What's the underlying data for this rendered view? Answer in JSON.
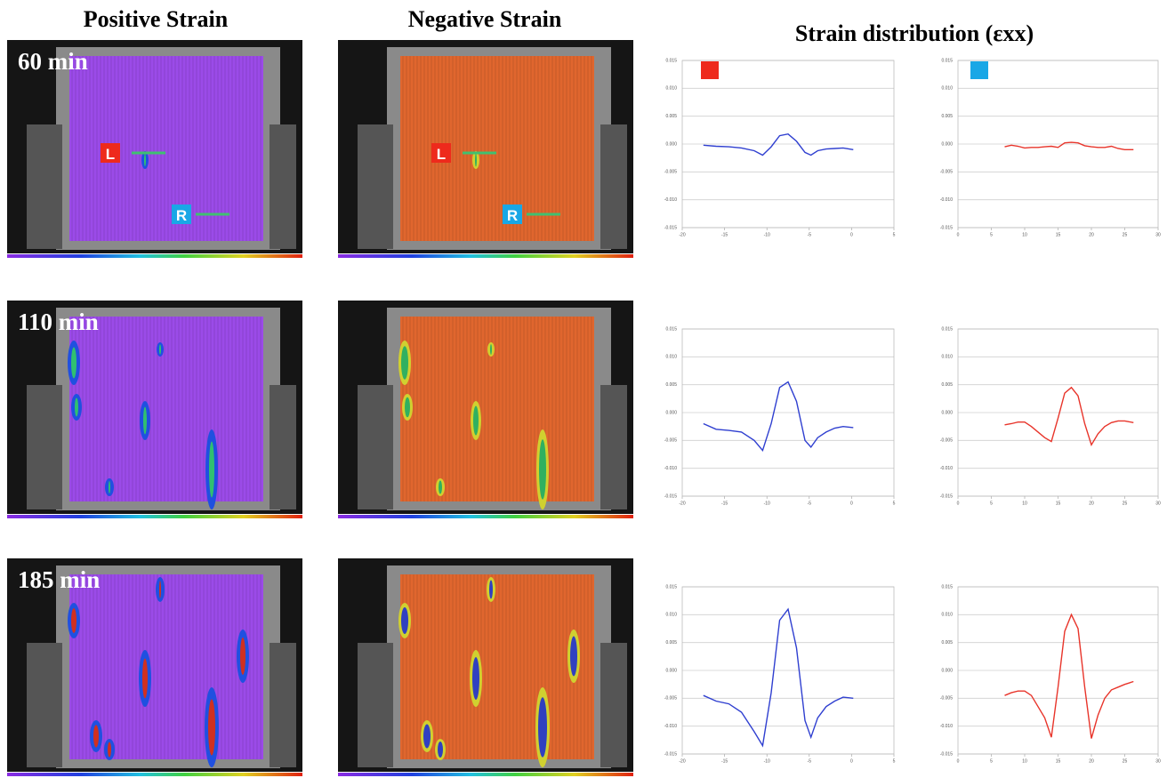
{
  "headers": [
    "Positive Strain",
    "Negative Strain",
    "Strain distribution (εxx)"
  ],
  "times": [
    "60 min",
    "110 min",
    "185 min"
  ],
  "markers": [
    "L",
    "R"
  ],
  "chart_data": [
    {
      "type": "line",
      "xlim": [
        -20,
        5
      ],
      "xticks": [
        -20,
        -15,
        -10,
        -5,
        0,
        5
      ],
      "ylim": [
        -0.015,
        0.015
      ],
      "yticks": [
        -0.015,
        {
          "value": -0.01,
          "label": "-0.010"
        },
        -0.005,
        {
          "value": 0,
          "label": "0.000"
        },
        0.005,
        {
          "value": 0.01,
          "label": "0.010"
        },
        0.015
      ],
      "x": [
        -17.5,
        -16,
        -14.5,
        -13,
        -11.5,
        -10.5,
        -9.5,
        -8.5,
        -7.5,
        -6.5,
        -5.5,
        -4.8,
        -4,
        -3,
        -2,
        -1,
        0.2
      ],
      "series": [
        {
          "color": "#2f3fd0",
          "values": [
            -0.0002,
            -0.0004,
            -0.0005,
            -0.0007,
            -0.0012,
            -0.002,
            -0.0005,
            0.0015,
            0.0018,
            0.0005,
            -0.0015,
            -0.002,
            -0.0012,
            -0.0009,
            -0.0008,
            -0.0007,
            -0.001
          ]
        }
      ]
    },
    {
      "type": "line",
      "xlim": [
        0,
        30
      ],
      "xticks": [
        0,
        5,
        10,
        15,
        20,
        25,
        30
      ],
      "ylim": [
        -0.015,
        0.015
      ],
      "yticks": [
        -0.015,
        {
          "value": -0.01,
          "label": "-0.010"
        },
        -0.005,
        {
          "value": 0,
          "label": "0.000"
        },
        0.005,
        {
          "value": 0.01,
          "label": "0.010"
        },
        0.015
      ],
      "x": [
        7,
        8,
        9,
        10,
        11,
        12,
        13,
        14,
        15,
        16,
        17,
        18,
        19,
        20,
        21,
        22,
        23,
        24,
        25,
        26.3
      ],
      "series": [
        {
          "color": "#e8342a",
          "values": [
            -0.0005,
            -0.0002,
            -0.0004,
            -0.0007,
            -0.0006,
            -0.0006,
            -0.0005,
            -0.0004,
            -0.0006,
            0.0002,
            0.0003,
            0.0002,
            -0.0003,
            -0.0005,
            -0.0006,
            -0.0006,
            -0.0004,
            -0.0008,
            -0.001,
            -0.001
          ]
        }
      ]
    },
    {
      "type": "line",
      "xlim": [
        -20,
        5
      ],
      "xticks": [
        -20,
        -15,
        -10,
        -5,
        0,
        5
      ],
      "ylim": [
        -0.015,
        0.015
      ],
      "yticks": [
        -0.015,
        {
          "value": -0.01,
          "label": "-0.010"
        },
        -0.005,
        {
          "value": 0,
          "label": "0.000"
        },
        0.005,
        {
          "value": 0.01,
          "label": "0.010"
        },
        0.015
      ],
      "x": [
        -17.5,
        -16,
        -14.5,
        -13,
        -11.5,
        -10.5,
        -9.5,
        -8.5,
        -7.5,
        -6.5,
        -5.5,
        -4.8,
        -4,
        -3,
        -2,
        -1,
        0.2
      ],
      "series": [
        {
          "color": "#2f3fd0",
          "values": [
            -0.002,
            -0.003,
            -0.0032,
            -0.0035,
            -0.005,
            -0.0068,
            -0.002,
            0.0045,
            0.0055,
            0.002,
            -0.005,
            -0.0062,
            -0.0045,
            -0.0035,
            -0.0028,
            -0.0025,
            -0.0027
          ]
        }
      ]
    },
    {
      "type": "line",
      "xlim": [
        0,
        30
      ],
      "xticks": [
        0,
        5,
        10,
        15,
        20,
        25,
        30
      ],
      "ylim": [
        -0.015,
        0.015
      ],
      "yticks": [
        -0.015,
        {
          "value": -0.01,
          "label": "-0.010"
        },
        -0.005,
        {
          "value": 0,
          "label": "0.000"
        },
        0.005,
        {
          "value": 0.01,
          "label": "0.010"
        },
        0.015
      ],
      "x": [
        7,
        8,
        9,
        10,
        11,
        12,
        13,
        14,
        15,
        16,
        17,
        18,
        19,
        20,
        21,
        22,
        23,
        24,
        25,
        26.3
      ],
      "series": [
        {
          "color": "#e8342a",
          "values": [
            -0.0022,
            -0.002,
            -0.0017,
            -0.0017,
            -0.0025,
            -0.0035,
            -0.0045,
            -0.0052,
            -0.001,
            0.0035,
            0.0045,
            0.003,
            -0.002,
            -0.0058,
            -0.0038,
            -0.0025,
            -0.0018,
            -0.0015,
            -0.0015,
            -0.0018
          ]
        }
      ]
    },
    {
      "type": "line",
      "xlim": [
        -20,
        5
      ],
      "xticks": [
        -20,
        -15,
        -10,
        -5,
        0,
        5
      ],
      "ylim": [
        -0.015,
        0.015
      ],
      "yticks": [
        -0.015,
        {
          "value": -0.01,
          "label": "-0.010"
        },
        -0.005,
        {
          "value": 0,
          "label": "0.000"
        },
        0.005,
        {
          "value": 0.01,
          "label": "0.010"
        },
        0.015
      ],
      "x": [
        -17.5,
        -16,
        -14.5,
        -13,
        -11.5,
        -10.5,
        -9.5,
        -8.5,
        -7.5,
        -6.5,
        -5.5,
        -4.8,
        -4,
        -3,
        -2,
        -1,
        0.2
      ],
      "series": [
        {
          "color": "#2f3fd0",
          "values": [
            -0.0045,
            -0.0055,
            -0.006,
            -0.0075,
            -0.011,
            -0.0135,
            -0.004,
            0.009,
            0.011,
            0.004,
            -0.009,
            -0.012,
            -0.0085,
            -0.0065,
            -0.0055,
            -0.0048,
            -0.005
          ]
        }
      ]
    },
    {
      "type": "line",
      "xlim": [
        0,
        30
      ],
      "xticks": [
        0,
        5,
        10,
        15,
        20,
        25,
        30
      ],
      "ylim": [
        -0.015,
        0.015
      ],
      "yticks": [
        -0.015,
        {
          "value": -0.01,
          "label": "-0.010"
        },
        -0.005,
        {
          "value": 0,
          "label": "0.000"
        },
        0.005,
        {
          "value": 0.01,
          "label": "0.010"
        },
        0.015
      ],
      "x": [
        7,
        8,
        9,
        10,
        11,
        12,
        13,
        14,
        15,
        16,
        17,
        18,
        19,
        20,
        21,
        22,
        23,
        24,
        25,
        26.3
      ],
      "series": [
        {
          "color": "#e8342a",
          "values": [
            -0.0045,
            -0.004,
            -0.0037,
            -0.0037,
            -0.0045,
            -0.0065,
            -0.0085,
            -0.012,
            -0.003,
            0.007,
            0.01,
            0.0075,
            -0.003,
            -0.0122,
            -0.008,
            -0.005,
            -0.0035,
            -0.003,
            -0.0025,
            -0.002
          ]
        }
      ]
    }
  ]
}
